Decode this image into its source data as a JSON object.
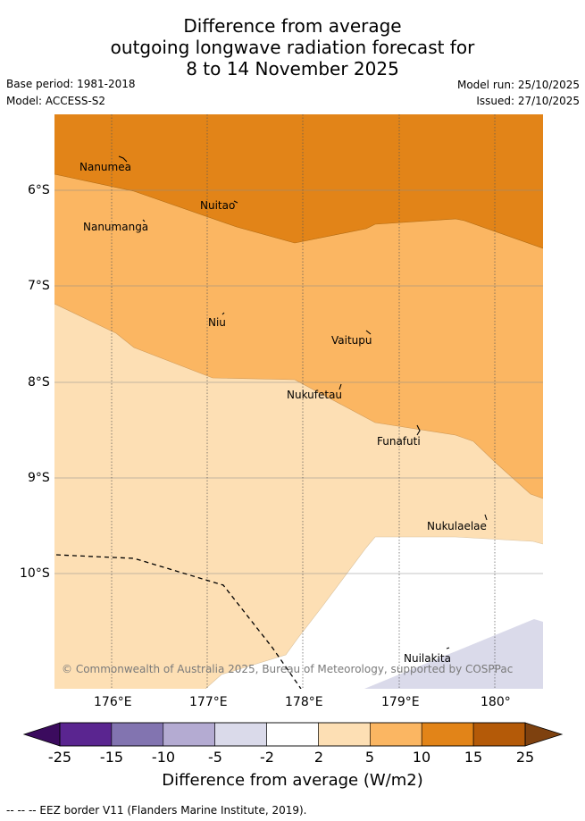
{
  "header": {
    "title_line1": "Difference from average",
    "title_line2": "outgoing longwave radiation forecast for",
    "title_line3": "8 to 14 November 2025",
    "base_period": "Base period: 1981-2018",
    "model": "Model: ACCESS-S2",
    "model_run": "Model run: 25/10/2025",
    "issued": "Issued: 27/10/2025"
  },
  "map": {
    "lat_labels": [
      "6°S",
      "7°S",
      "8°S",
      "9°S",
      "10°S"
    ],
    "lon_labels": [
      "176°E",
      "177°E",
      "178°E",
      "179°E",
      "180°"
    ],
    "islands": [
      "Nanumea",
      "Nuitao",
      "Nanumanga",
      "Niu",
      "Vaitupu",
      "Nukufetau",
      "Funafuti",
      "Nukulaelae",
      "Nuilakita"
    ],
    "copyright": "© Commonwealth of Australia 2025, Bureau of Meteorology, supported by COSPPac"
  },
  "colorbar": {
    "ticks": [
      "-25",
      "-15",
      "-10",
      "-5",
      "-2",
      "2",
      "5",
      "10",
      "15",
      "25"
    ],
    "colors": [
      "#5a2590",
      "#8274b0",
      "#b4abd2",
      "#dadaea",
      "#ffffff",
      "#fddfb4",
      "#fbb662",
      "#e28418",
      "#b45a08"
    ],
    "under_color": "#3b0b5e",
    "over_color": "#7e410f",
    "title": "Difference from average (W/m2)"
  },
  "footer": {
    "legend_text": "--  --  -- EEZ border V11 (Flanders Marine Institute, 2019)."
  }
}
